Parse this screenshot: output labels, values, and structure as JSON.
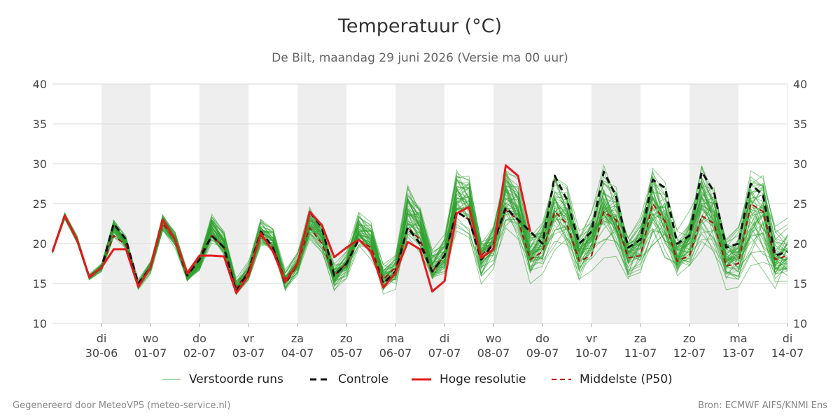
{
  "chart_data": {
    "type": "line",
    "title": "Temperatuur (°C)",
    "subtitle": "De Bilt, maandag 29 juni 2026 (Versie ma 00 uur)",
    "ylim": [
      10,
      40
    ],
    "yticks": [
      10,
      15,
      20,
      25,
      30,
      35,
      40
    ],
    "x_unit": "days",
    "xlim": [
      0,
      15
    ],
    "xticks": [
      {
        "x": 1,
        "day": "di",
        "date": "30-06"
      },
      {
        "x": 2,
        "day": "wo",
        "date": "01-07"
      },
      {
        "x": 3,
        "day": "do",
        "date": "02-07"
      },
      {
        "x": 4,
        "day": "vr",
        "date": "03-07"
      },
      {
        "x": 5,
        "day": "za",
        "date": "04-07"
      },
      {
        "x": 6,
        "day": "zo",
        "date": "05-07"
      },
      {
        "x": 7,
        "day": "ma",
        "date": "06-07"
      },
      {
        "x": 8,
        "day": "di",
        "date": "07-07"
      },
      {
        "x": 9,
        "day": "wo",
        "date": "08-07"
      },
      {
        "x": 10,
        "day": "do",
        "date": "09-07"
      },
      {
        "x": 11,
        "day": "vr",
        "date": "10-07"
      },
      {
        "x": 12,
        "day": "za",
        "date": "11-07"
      },
      {
        "x": 13,
        "day": "zo",
        "date": "12-07"
      },
      {
        "x": 14,
        "day": "ma",
        "date": "13-07"
      },
      {
        "x": 15,
        "day": "di",
        "date": "14-07"
      }
    ],
    "shaded_days": [
      [
        1,
        2
      ],
      [
        3,
        4
      ],
      [
        5,
        6
      ],
      [
        7,
        8
      ],
      [
        9,
        10
      ],
      [
        11,
        12
      ],
      [
        13,
        14
      ]
    ],
    "grid": true,
    "legend_position": "bottom",
    "series": [
      {
        "name": "Verstoorde runs",
        "style": "thin-green",
        "x": [
          0,
          0.25,
          0.5,
          0.75,
          1,
          1.25,
          1.5,
          1.75,
          2,
          2.25,
          2.5,
          2.75,
          3,
          3.25,
          3.5,
          3.75,
          4,
          4.25,
          4.5,
          4.75,
          5,
          5.25,
          5.5,
          5.75,
          6,
          6.25,
          6.5,
          6.75,
          7,
          7.25,
          7.5,
          7.75,
          8,
          8.25,
          8.5,
          8.75,
          9,
          9.25,
          9.5,
          9.75,
          10,
          10.25,
          10.5,
          10.75,
          11,
          11.25,
          11.5,
          11.75,
          12,
          12.25,
          12.5,
          12.75,
          13,
          13.25,
          13.5,
          13.75,
          14,
          14.25,
          14.5,
          14.75,
          15
        ],
        "values": [
          19,
          23.5,
          20.5,
          15.8,
          17,
          22,
          20,
          14.8,
          17,
          22.5,
          20.5,
          15.8,
          17.5,
          22,
          20,
          14.5,
          16.5,
          21.5,
          20.5,
          15.5,
          17.5,
          22.5,
          21,
          16,
          17.5,
          22,
          20.5,
          15.5,
          16.5,
          24,
          22.5,
          17,
          18.5,
          26,
          25,
          18,
          20,
          26,
          24.5,
          18.5,
          20,
          25,
          23.5,
          18.5,
          20.5,
          24,
          23,
          18.5,
          20,
          25,
          23,
          18.5,
          20,
          25,
          23.5,
          18,
          18.5,
          24,
          23,
          18,
          19
        ],
        "spread": [
          0.3,
          0.5,
          0.6,
          0.5,
          0.6,
          1.2,
          1.0,
          0.8,
          0.9,
          1.5,
          1.3,
          1.0,
          1.1,
          2.0,
          1.8,
          1.2,
          1.4,
          2.3,
          2.0,
          1.6,
          1.7,
          2.6,
          2.5,
          2.0,
          2.1,
          3.2,
          3.0,
          2.4,
          2.5,
          4.0,
          3.6,
          2.8,
          3.0,
          4.5,
          4.2,
          3.2,
          3.4,
          5.0,
          4.7,
          3.5,
          3.6,
          5.5,
          5.0,
          3.6,
          3.8,
          6.0,
          5.5,
          3.8,
          4.0,
          6.5,
          6.0,
          4.0,
          4.2,
          6.8,
          6.2,
          4.2,
          4.4,
          7.0,
          6.5,
          4.5,
          4.6
        ],
        "members": 50,
        "color": "#2ca02c"
      },
      {
        "name": "Controle",
        "style": "dashed-black",
        "x": [
          0,
          0.25,
          0.5,
          0.75,
          1,
          1.25,
          1.5,
          1.75,
          2,
          2.25,
          2.5,
          2.75,
          3,
          3.25,
          3.5,
          3.75,
          4,
          4.25,
          4.5,
          4.75,
          5,
          5.25,
          5.5,
          5.75,
          6,
          6.25,
          6.5,
          6.75,
          7,
          7.25,
          7.5,
          7.75,
          8,
          8.25,
          8.5,
          8.75,
          9,
          9.25,
          9.5,
          9.75,
          10,
          10.25,
          10.5,
          10.75,
          11,
          11.25,
          11.5,
          11.75,
          12,
          12.25,
          12.5,
          12.75,
          13,
          13.25,
          13.5,
          13.75,
          14,
          14.25,
          14.5,
          14.75,
          15
        ],
        "values": [
          19,
          23.5,
          20.5,
          15.8,
          17,
          22.5,
          20.5,
          15,
          17,
          23,
          20.5,
          16,
          18,
          21,
          19.5,
          14,
          16.5,
          21.5,
          19.5,
          15,
          17.5,
          24,
          22,
          16,
          17.5,
          20.5,
          19,
          15,
          16.5,
          22,
          20,
          16.5,
          18.5,
          24,
          23,
          18,
          20,
          24.5,
          23,
          21.5,
          20,
          28.5,
          25.5,
          20,
          21.5,
          29,
          26,
          19.5,
          20.5,
          28,
          27,
          20,
          21,
          29,
          26.5,
          19.5,
          20,
          27.5,
          26,
          18.5,
          19
        ],
        "color": "#111111"
      },
      {
        "name": "Hoge resolutie",
        "style": "solid-red",
        "x": [
          0,
          0.25,
          0.5,
          0.75,
          1,
          1.25,
          1.5,
          1.75,
          2,
          2.25,
          2.5,
          2.75,
          3,
          3.25,
          3.5,
          3.75,
          4,
          4.25,
          4.5,
          4.75,
          5,
          5.25,
          5.5,
          5.75,
          6,
          6.25,
          6.5,
          6.75,
          7,
          7.25,
          7.5,
          7.75,
          8,
          8.25,
          8.5,
          8.75,
          9,
          9.25,
          9.5,
          9.75
        ],
        "values": [
          19,
          23.5,
          20.5,
          15.8,
          17,
          19.3,
          19.3,
          14.6,
          17,
          23,
          20.5,
          16.3,
          18.5,
          18.5,
          18.4,
          13.8,
          16,
          21.3,
          19,
          15.2,
          17.5,
          24,
          22.3,
          18.3,
          19.5,
          20.5,
          19,
          14.5,
          16.3,
          20.2,
          19.3,
          14,
          15.3,
          23.8,
          24.6,
          18.2,
          19.3,
          29.8,
          28.5,
          21.5
        ],
        "color": "#e31a1c"
      },
      {
        "name": "Middelste (P50)",
        "style": "dashed-darkred",
        "x": [
          0,
          0.25,
          0.5,
          0.75,
          1,
          1.25,
          1.5,
          1.75,
          2,
          2.25,
          2.5,
          2.75,
          3,
          3.25,
          3.5,
          3.75,
          4,
          4.25,
          4.5,
          4.75,
          5,
          5.25,
          5.5,
          5.75,
          6,
          6.25,
          6.5,
          6.75,
          7,
          7.25,
          7.5,
          7.75,
          8,
          8.25,
          8.5,
          8.75,
          9,
          9.25,
          9.5,
          9.75,
          10,
          10.25,
          10.5,
          10.75,
          11,
          11.25,
          11.5,
          11.75,
          12,
          12.25,
          12.5,
          12.75,
          13,
          13.25,
          13.5,
          13.75,
          14,
          14.25,
          14.5,
          14.75,
          15
        ],
        "values": [
          19,
          23.5,
          20.5,
          15.8,
          17,
          21,
          19.8,
          15,
          17,
          22.5,
          20.5,
          16,
          18.5,
          21,
          19.5,
          14.5,
          16.5,
          21,
          19.5,
          15.5,
          17.5,
          22,
          20,
          16,
          17.5,
          20.5,
          19.5,
          15.5,
          17,
          22,
          20.5,
          16.5,
          18.5,
          24,
          23,
          18.5,
          20,
          24.2,
          23,
          18,
          19,
          24,
          22.5,
          17.8,
          18.5,
          24,
          23,
          18.2,
          18.5,
          25,
          22.8,
          17.8,
          18.5,
          23.5,
          22.5,
          17.2,
          17.5,
          25,
          24,
          18,
          18.5
        ],
        "color": "#b01010"
      }
    ],
    "legend": [
      {
        "label": "Verstoorde runs",
        "style": "thin-green"
      },
      {
        "label": "Controle",
        "style": "dashed-black"
      },
      {
        "label": "Hoge resolutie",
        "style": "solid-red"
      },
      {
        "label": "Middelste (P50)",
        "style": "dashed-darkred"
      }
    ]
  },
  "footer": {
    "left": "Gegenereerd door MeteoVPS (meteo-service.nl)",
    "right": "Bron: ECMWF AIFS/KNMI Ens"
  }
}
